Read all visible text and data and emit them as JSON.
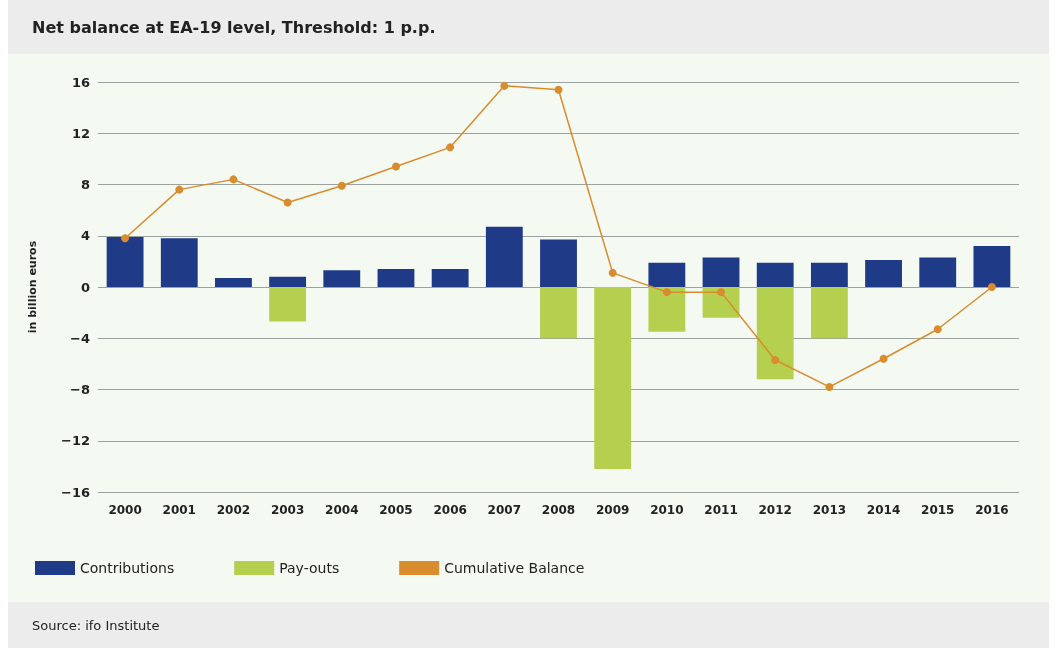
{
  "chart_data": {
    "type": "bar",
    "title": "Net balance at EA-19 level, Threshold: 1 p.p.",
    "ylabel": "in billion euros",
    "annotations": [
      "Source: ifo Institute"
    ],
    "categories": [
      "2000",
      "2001",
      "2002",
      "2003",
      "2004",
      "2005",
      "2006",
      "2007",
      "2008",
      "2009",
      "2010",
      "2011",
      "2012",
      "2013",
      "2014",
      "2015",
      "2016"
    ],
    "stacked": true,
    "grid": "y",
    "legend": "bottom",
    "ylim": [
      -16,
      16
    ],
    "yticks": [
      {
        "value": -16,
        "label": "−16"
      },
      {
        "value": -12,
        "label": "−12"
      },
      {
        "value": -8,
        "label": "−8"
      },
      {
        "value": -4,
        "label": "−4"
      },
      0,
      4,
      8,
      12,
      16
    ],
    "series": [
      {
        "name": "Contributions",
        "color": "#1f3a87",
        "values": [
          3.9,
          3.8,
          0.7,
          0.8,
          1.3,
          1.4,
          1.4,
          4.7,
          3.7,
          0,
          1.9,
          2.3,
          1.9,
          1.9,
          2.1,
          2.3,
          3.2
        ]
      },
      {
        "name": "Pay-outs",
        "color": "#b5cf4f",
        "values": [
          null,
          null,
          null,
          -2.7,
          null,
          null,
          null,
          null,
          -4,
          -14.2,
          -3.5,
          -2.4,
          -7.2,
          -4,
          null,
          null,
          null
        ]
      },
      {
        "name": "Cumulative Balance",
        "type": "line",
        "color": "#d98c2e",
        "marker": "circle",
        "values": [
          3.8,
          7.6,
          8.4,
          6.6,
          7.9,
          9.4,
          10.9,
          15.7,
          15.4,
          1.1,
          -0.4,
          -0.4,
          -5.7,
          -7.8,
          -5.6,
          -3.3,
          0
        ]
      }
    ]
  }
}
